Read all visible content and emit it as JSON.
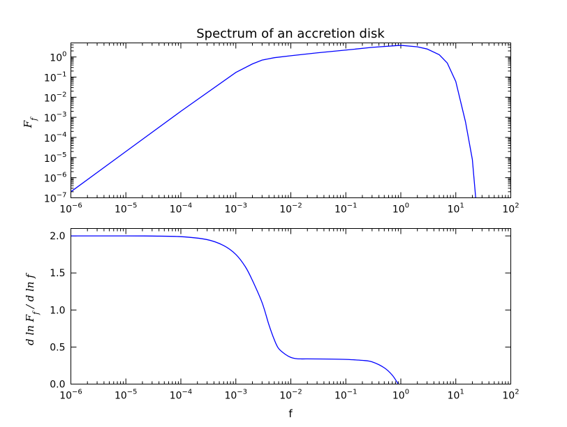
{
  "chart_data": [
    {
      "type": "line",
      "title": "Spectrum of an accretion disk",
      "xlabel": "",
      "ylabel": "F_f",
      "xscale": "log",
      "yscale": "log",
      "xlim": [
        1e-06,
        100
      ],
      "ylim": [
        1e-07,
        5
      ],
      "x_ticks": [
        -6,
        -5,
        -4,
        -3,
        -2,
        -1,
        0,
        1,
        2
      ],
      "y_ticks": [
        -7,
        -6,
        -5,
        -4,
        -3,
        -2,
        -1,
        0
      ],
      "tick_base": "10",
      "grid": false,
      "series": [
        {
          "color": "#0000ff",
          "x": [
            1e-06,
            1e-05,
            0.0001,
            0.001,
            0.002,
            0.003,
            0.005,
            0.01,
            0.03,
            0.1,
            0.3,
            1,
            2,
            3,
            5,
            7,
            10,
            15,
            20,
            23
          ],
          "y": [
            2e-07,
            2e-05,
            0.002,
            0.17,
            0.45,
            0.7,
            0.92,
            1.15,
            1.6,
            2.2,
            3.0,
            3.8,
            3.2,
            2.5,
            1.3,
            0.5,
            0.06,
            0.0006,
            8e-06,
            1e-07
          ]
        }
      ]
    },
    {
      "type": "line",
      "title": "",
      "xlabel": "f",
      "ylabel": "d ln F_f / d ln f",
      "xscale": "log",
      "yscale": "linear",
      "xlim": [
        1e-06,
        100
      ],
      "ylim": [
        0.0,
        2.1
      ],
      "x_ticks": [
        -6,
        -5,
        -4,
        -3,
        -2,
        -1,
        0,
        1,
        2
      ],
      "tick_base": "10",
      "y_tick_labels": [
        "0.0",
        "0.5",
        "1.0",
        "1.5",
        "2.0"
      ],
      "grid": false,
      "series": [
        {
          "color": "#0000ff",
          "x": [
            1e-06,
            1e-05,
            3e-05,
            0.0001,
            0.0003,
            0.0006,
            0.001,
            0.0015,
            0.002,
            0.003,
            0.004,
            0.005,
            0.006,
            0.008,
            0.01,
            0.012,
            0.015,
            0.02,
            0.05,
            0.1,
            0.2,
            0.3,
            0.5,
            0.7,
            0.9
          ],
          "y": [
            2.0,
            2.0,
            1.998,
            1.99,
            1.95,
            1.87,
            1.75,
            1.58,
            1.4,
            1.1,
            0.8,
            0.6,
            0.48,
            0.4,
            0.36,
            0.345,
            0.34,
            0.34,
            0.338,
            0.333,
            0.32,
            0.3,
            0.22,
            0.12,
            0.0
          ]
        }
      ]
    }
  ]
}
